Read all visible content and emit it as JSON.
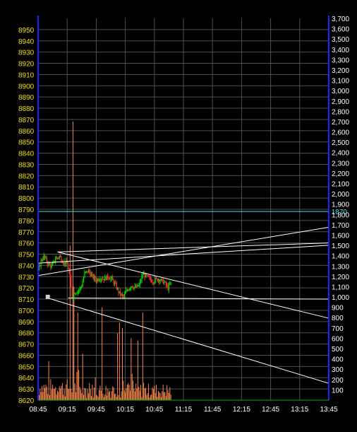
{
  "chart_data": {
    "type": "candlestick-volume",
    "title": "",
    "xlabel": "",
    "ylabel": "",
    "y_left": {
      "range": [
        8620,
        8960
      ],
      "ticks": [
        "8620",
        "8630",
        "8640",
        "8650",
        "8660",
        "8670",
        "8680",
        "8690",
        "8700",
        "8710",
        "8720",
        "8730",
        "8740",
        "8750",
        "8760",
        "8770",
        "8780",
        "8790",
        "8800",
        "8810",
        "8820",
        "8830",
        "8840",
        "8850",
        "8860",
        "8870",
        "8880",
        "8890",
        "8900",
        "8910",
        "8920",
        "8930",
        "8940",
        "8950"
      ],
      "color": "#f0e000"
    },
    "y_right": {
      "range": [
        0,
        3700
      ],
      "ticks": [
        "100",
        "200",
        "300",
        "400",
        "500",
        "600",
        "700",
        "800",
        "900",
        "1,000",
        "1,100",
        "1,200",
        "1,300",
        "1,400",
        "1,500",
        "1,600",
        "1,700",
        "1,800",
        "1,900",
        "2,000",
        "2,100",
        "2,200",
        "2,300",
        "2,400",
        "2,500",
        "2,600",
        "2,700",
        "2,800",
        "2,900",
        "3,000",
        "3,100",
        "3,200",
        "3,300",
        "3,400",
        "3,500",
        "3,600",
        "3,700"
      ]
    },
    "x": {
      "labels": [
        "08:45",
        "09:15",
        "09:45",
        "10:15",
        "10:45",
        "11:15",
        "11:45",
        "12:15",
        "12:45",
        "13:15",
        "13:45"
      ],
      "total_minutes": 300
    },
    "reference_line": {
      "value": 8788,
      "label": "1870",
      "color": "#40e0e0"
    },
    "price_anchors": [
      [
        0,
        8735
      ],
      [
        3,
        8744
      ],
      [
        6,
        8748
      ],
      [
        10,
        8742
      ],
      [
        14,
        8739
      ],
      [
        18,
        8746
      ],
      [
        22,
        8748
      ],
      [
        26,
        8743
      ],
      [
        30,
        8742
      ],
      [
        33,
        8728
      ],
      [
        35,
        8712
      ],
      [
        38,
        8716
      ],
      [
        42,
        8718
      ],
      [
        45,
        8722
      ],
      [
        48,
        8733
      ],
      [
        52,
        8735
      ],
      [
        56,
        8730
      ],
      [
        60,
        8727
      ],
      [
        64,
        8729
      ],
      [
        68,
        8728
      ],
      [
        72,
        8730
      ],
      [
        76,
        8728
      ],
      [
        80,
        8722
      ],
      [
        84,
        8715
      ],
      [
        88,
        8712
      ],
      [
        92,
        8718
      ],
      [
        96,
        8722
      ],
      [
        100,
        8720
      ],
      [
        104,
        8722
      ],
      [
        108,
        8732
      ],
      [
        112,
        8730
      ],
      [
        118,
        8726
      ],
      [
        124,
        8728
      ],
      [
        130,
        8725
      ],
      [
        134,
        8720
      ],
      [
        137,
        8724
      ]
    ],
    "volume_spikes": [
      [
        33,
        1500
      ],
      [
        36,
        2700
      ],
      [
        37,
        1100
      ],
      [
        41,
        850
      ],
      [
        46,
        450
      ],
      [
        66,
        900
      ],
      [
        82,
        650
      ],
      [
        84,
        750
      ],
      [
        87,
        700
      ],
      [
        96,
        600
      ],
      [
        103,
        580
      ],
      [
        108,
        850
      ]
    ],
    "trend_lines": [
      [
        [
          0,
          8731
        ],
        [
          300,
          8774
        ]
      ],
      [
        [
          20,
          8752
        ],
        [
          300,
          8760
        ]
      ],
      [
        [
          20,
          8752
        ],
        [
          300,
          8693
        ]
      ],
      [
        [
          10,
          8711
        ],
        [
          300,
          8635
        ]
      ],
      [
        [
          31,
          8711
        ],
        [
          300,
          8710
        ]
      ],
      [
        [
          0,
          8742
        ],
        [
          300,
          8758
        ]
      ]
    ],
    "marker": [
      10,
      8712
    ],
    "colors": {
      "up": "#00e000",
      "down": "#ff3030",
      "volume": "#ff8c50",
      "grid": "#505050",
      "axis": "#2020ff",
      "trend": "#ffffff",
      "bottom_line": "#00b000"
    }
  }
}
